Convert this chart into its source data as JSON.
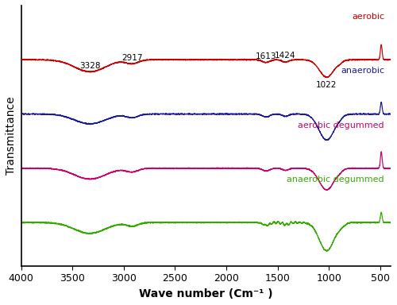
{
  "xlabel": "Wave number (Cm⁻¹ )",
  "ylabel": "Transmittance",
  "x_ticks": [
    500,
    1000,
    1500,
    2000,
    2500,
    3000,
    3500,
    4000
  ],
  "x_tick_labels": [
    "500",
    "1000",
    "1500",
    "2000",
    "2500",
    "3000",
    "3500",
    "4000"
  ],
  "colors": {
    "aerobic": "#cc0000",
    "anaerobic": "#1a1a99",
    "aerobic_degummed": "#cc0066",
    "anaerobic_degummed": "#33aa00"
  },
  "labels": {
    "aerobic": "aerobic",
    "anaerobic": "anaerobic",
    "aerobic_degummed": "aerobic degummed",
    "anaerobic_degummed": "anaerobic degummed"
  },
  "annotations": [
    {
      "text": "3328",
      "xdata": 3328,
      "xtext": 3328
    },
    {
      "text": "2917",
      "xdata": 2917,
      "xtext": 2917
    },
    {
      "text": "1613",
      "xdata": 1613,
      "xtext": 1613
    },
    {
      "text": "1424",
      "xdata": 1424,
      "xtext": 1424
    },
    {
      "text": "1022",
      "xdata": 1022,
      "xtext": 1022
    }
  ],
  "offsets": [
    3.0,
    2.0,
    1.0,
    0.0
  ],
  "baseline": 0.55,
  "spectrum_keys": [
    "aerobic",
    "anaerobic",
    "aerobic_degummed",
    "anaerobic_degummed"
  ]
}
